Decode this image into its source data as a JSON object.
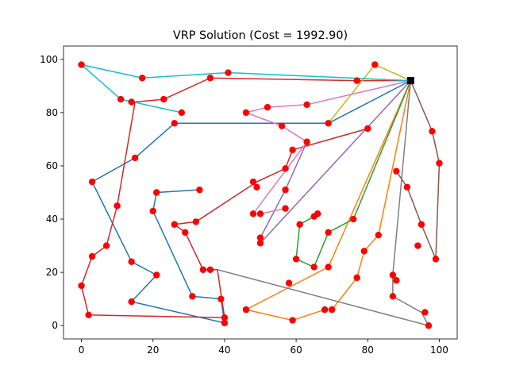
{
  "chart_data": {
    "type": "line",
    "title": "VRP Solution (Cost = 1992.90)",
    "xlabel": "",
    "ylabel": "",
    "xlim": [
      -5,
      105
    ],
    "ylim": [
      -5,
      105
    ],
    "xticks": [
      0,
      20,
      40,
      60,
      80,
      100
    ],
    "yticks": [
      0,
      20,
      40,
      60,
      80,
      100
    ],
    "grid": false,
    "depot": {
      "x": 92,
      "y": 92
    },
    "colors": {
      "depot": "#000000",
      "customer": "#ff0000",
      "axes": "#000000"
    },
    "routes": [
      {
        "color": "#1f77b4",
        "stops": [
          [
            69,
            76
          ],
          [
            26,
            76
          ],
          [
            15,
            63
          ],
          [
            3,
            54
          ],
          [
            14,
            24
          ],
          [
            21,
            19
          ],
          [
            14,
            9
          ],
          [
            40,
            1
          ],
          [
            39,
            10
          ],
          [
            31,
            11
          ],
          [
            20,
            43
          ],
          [
            21,
            50
          ],
          [
            33,
            51
          ]
        ]
      },
      {
        "color": "#ff7f0e",
        "stops": [
          [
            83,
            34
          ],
          [
            79,
            28
          ],
          [
            77,
            18
          ],
          [
            70,
            6
          ],
          [
            68,
            6
          ],
          [
            59,
            2
          ],
          [
            46,
            6
          ],
          [
            69,
            22
          ],
          [
            92,
            92
          ]
        ]
      },
      {
        "color": "#2ca02c",
        "stops": [
          [
            76,
            40
          ],
          [
            69,
            35
          ],
          [
            65,
            22
          ],
          [
            60,
            25
          ],
          [
            61,
            38
          ],
          [
            65,
            41
          ],
          [
            66,
            42
          ]
        ]
      },
      {
        "color": "#d62728",
        "stops": [
          [
            77,
            92
          ],
          [
            36,
            93
          ],
          [
            23,
            85
          ],
          [
            15,
            84
          ],
          [
            10,
            45
          ],
          [
            7,
            30
          ],
          [
            3,
            26
          ],
          [
            0,
            15
          ],
          [
            2,
            4
          ],
          [
            40,
            3
          ],
          [
            38,
            21
          ],
          [
            34,
            21
          ],
          [
            29,
            35
          ],
          [
            26,
            38
          ],
          [
            32,
            39
          ],
          [
            49,
            54
          ],
          [
            57,
            59
          ],
          [
            59,
            66
          ],
          [
            80,
            74
          ]
        ]
      },
      {
        "color": "#9467bd",
        "stops": [
          [
            50,
            31
          ],
          [
            50,
            33
          ],
          [
            57,
            51
          ],
          [
            63,
            69
          ]
        ]
      },
      {
        "color": "#8c564b",
        "stops": [
          [
            98,
            73
          ],
          [
            100,
            61
          ],
          [
            99,
            25
          ],
          [
            95,
            38
          ],
          [
            91,
            52
          ],
          [
            88,
            58
          ]
        ]
      },
      {
        "color": "#e377c2",
        "stops": [
          [
            63,
            83
          ],
          [
            52,
            82
          ],
          [
            46,
            80
          ],
          [
            56,
            75
          ],
          [
            63,
            69
          ],
          [
            48,
            42
          ],
          [
            50,
            42
          ],
          [
            57,
            44
          ]
        ]
      },
      {
        "color": "#7f7f7f",
        "stops": [
          [
            87,
            19
          ],
          [
            87,
            11
          ],
          [
            95,
            5
          ],
          [
            97,
            0
          ],
          [
            38,
            21
          ]
        ]
      },
      {
        "color": "#bcbd22",
        "stops": [
          [
            82,
            98
          ],
          [
            69,
            76
          ]
        ]
      },
      {
        "color": "#17becf",
        "stops": [
          [
            41,
            95
          ],
          [
            17,
            93
          ],
          [
            0,
            98
          ],
          [
            11,
            85
          ],
          [
            28,
            80
          ]
        ]
      }
    ],
    "customers": [
      [
        0,
        98
      ],
      [
        0,
        15
      ],
      [
        2,
        4
      ],
      [
        3,
        54
      ],
      [
        3,
        26
      ],
      [
        7,
        30
      ],
      [
        10,
        45
      ],
      [
        11,
        85
      ],
      [
        14,
        84
      ],
      [
        14,
        24
      ],
      [
        14,
        9
      ],
      [
        15,
        63
      ],
      [
        17,
        93
      ],
      [
        20,
        43
      ],
      [
        21,
        50
      ],
      [
        21,
        19
      ],
      [
        23,
        85
      ],
      [
        26,
        76
      ],
      [
        26,
        38
      ],
      [
        28,
        80
      ],
      [
        29,
        35
      ],
      [
        31,
        11
      ],
      [
        32,
        39
      ],
      [
        33,
        51
      ],
      [
        34,
        21
      ],
      [
        36,
        21
      ],
      [
        36,
        93
      ],
      [
        39,
        10
      ],
      [
        40,
        3
      ],
      [
        40,
        1
      ],
      [
        41,
        95
      ],
      [
        46,
        80
      ],
      [
        46,
        6
      ],
      [
        48,
        54
      ],
      [
        48,
        42
      ],
      [
        49,
        52
      ],
      [
        50,
        42
      ],
      [
        50,
        33
      ],
      [
        50,
        31
      ],
      [
        52,
        82
      ],
      [
        56,
        75
      ],
      [
        57,
        59
      ],
      [
        57,
        51
      ],
      [
        57,
        44
      ],
      [
        58,
        16
      ],
      [
        59,
        66
      ],
      [
        59,
        2
      ],
      [
        60,
        25
      ],
      [
        61,
        38
      ],
      [
        63,
        83
      ],
      [
        63,
        69
      ],
      [
        65,
        41
      ],
      [
        65,
        22
      ],
      [
        66,
        42
      ],
      [
        68,
        6
      ],
      [
        69,
        76
      ],
      [
        69,
        35
      ],
      [
        69,
        22
      ],
      [
        70,
        6
      ],
      [
        76,
        40
      ],
      [
        77,
        92
      ],
      [
        77,
        18
      ],
      [
        79,
        28
      ],
      [
        80,
        74
      ],
      [
        82,
        98
      ],
      [
        83,
        34
      ],
      [
        87,
        19
      ],
      [
        87,
        11
      ],
      [
        88,
        58
      ],
      [
        88,
        17
      ],
      [
        91,
        52
      ],
      [
        94,
        30
      ],
      [
        95,
        38
      ],
      [
        96,
        5
      ],
      [
        97,
        0
      ],
      [
        98,
        73
      ],
      [
        99,
        25
      ],
      [
        100,
        61
      ]
    ]
  }
}
